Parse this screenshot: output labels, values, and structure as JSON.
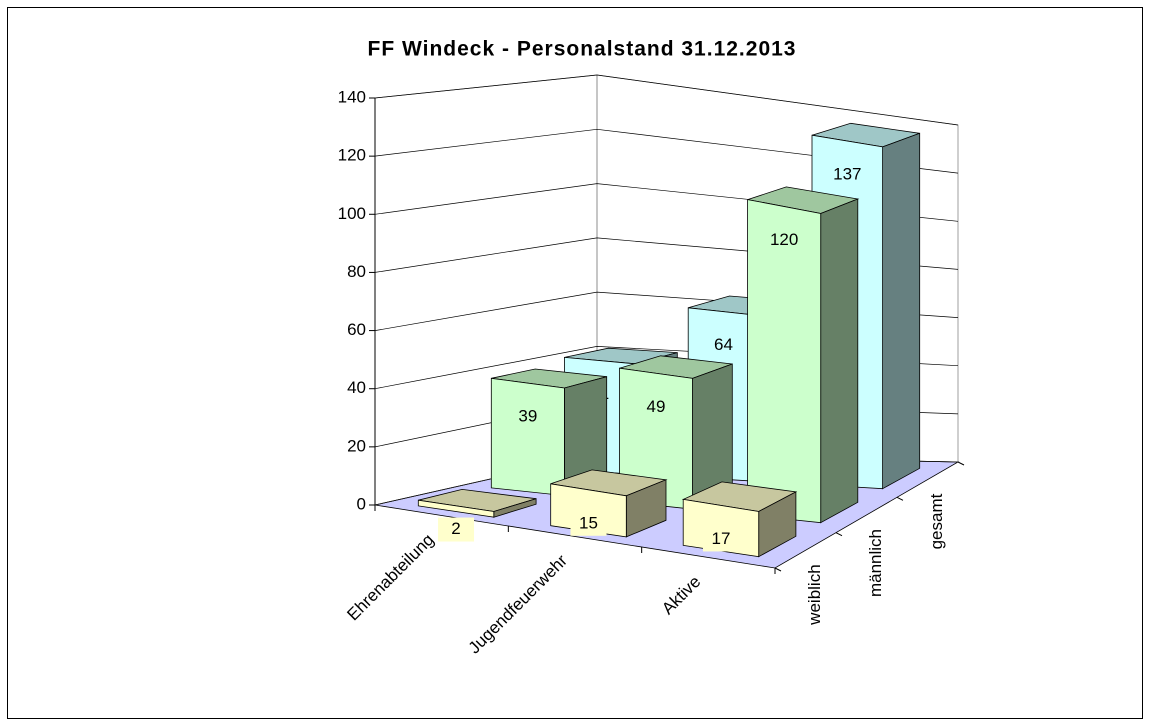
{
  "chart_data": {
    "type": "bar3d",
    "title": "FF Windeck - Personalstand 31.12.2013",
    "categories": [
      "Ehrenabteilung",
      "Jugendfeuerwehr",
      "Aktive"
    ],
    "series": [
      {
        "name": "weiblich",
        "color": "#ffffcc",
        "values": [
          2,
          15,
          17
        ]
      },
      {
        "name": "männlich",
        "color": "#ccffcc",
        "values": [
          39,
          49,
          120
        ]
      },
      {
        "name": "gesamt",
        "color": "#ccffff",
        "values": [
          41,
          64,
          137
        ]
      }
    ],
    "ylim": [
      0,
      140
    ],
    "yticks": [
      0,
      20,
      40,
      60,
      80,
      100,
      120,
      140
    ],
    "grid": true,
    "floor_color": "#ccccff"
  }
}
